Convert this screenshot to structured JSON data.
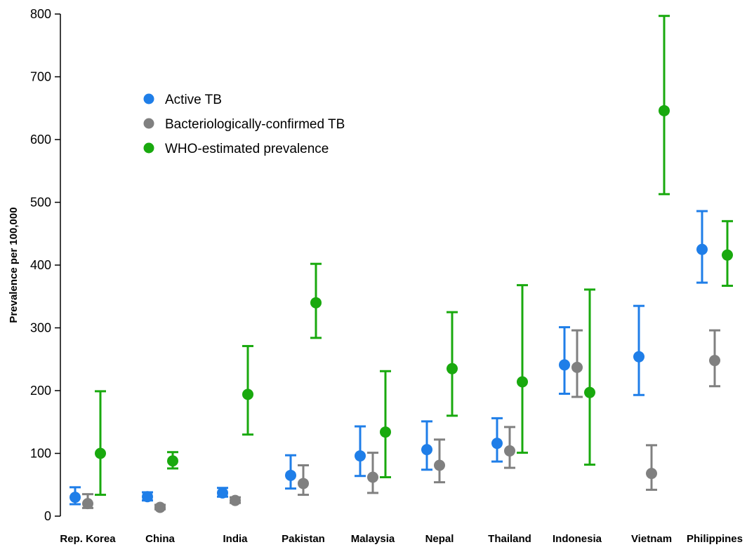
{
  "chart_data": {
    "type": "scatter",
    "ylabel": "Prevalence per 100,000",
    "ylim": [
      0,
      800
    ],
    "yticks": [
      0,
      100,
      200,
      300,
      400,
      500,
      600,
      700,
      800
    ],
    "grid": false,
    "legend_position": "top-left",
    "categories": [
      "Rep. Korea",
      "China",
      "India",
      "Pakistan",
      "Malaysia",
      "Nepal",
      "Thailand",
      "Indonesia",
      "Vietnam",
      "Philippines"
    ],
    "series": [
      {
        "name": "Active TB",
        "color": "#1f7ee8",
        "values": [
          30,
          31,
          37,
          65,
          96,
          106,
          116,
          241,
          254,
          425
        ],
        "lower": [
          19,
          25,
          31,
          44,
          64,
          74,
          87,
          195,
          193,
          372
        ],
        "upper": [
          46,
          38,
          45,
          97,
          143,
          151,
          156,
          301,
          335,
          486
        ]
      },
      {
        "name": "Bacteriologically-confirmed TB",
        "color": "#808080",
        "values": [
          20,
          14,
          25,
          52,
          62,
          81,
          104,
          237,
          68,
          248
        ],
        "lower": [
          13,
          11,
          21,
          34,
          37,
          54,
          77,
          190,
          42,
          207
        ],
        "upper": [
          35,
          18,
          30,
          81,
          101,
          122,
          142,
          296,
          113,
          296
        ]
      },
      {
        "name": "WHO-estimated prevalence",
        "color": "#19a90e",
        "values": [
          100,
          88,
          194,
          340,
          134,
          235,
          214,
          197,
          646,
          416
        ],
        "lower": [
          34,
          76,
          130,
          284,
          62,
          160,
          101,
          82,
          513,
          367
        ],
        "upper": [
          199,
          102,
          271,
          402,
          231,
          325,
          368,
          361,
          797,
          470
        ]
      }
    ]
  }
}
